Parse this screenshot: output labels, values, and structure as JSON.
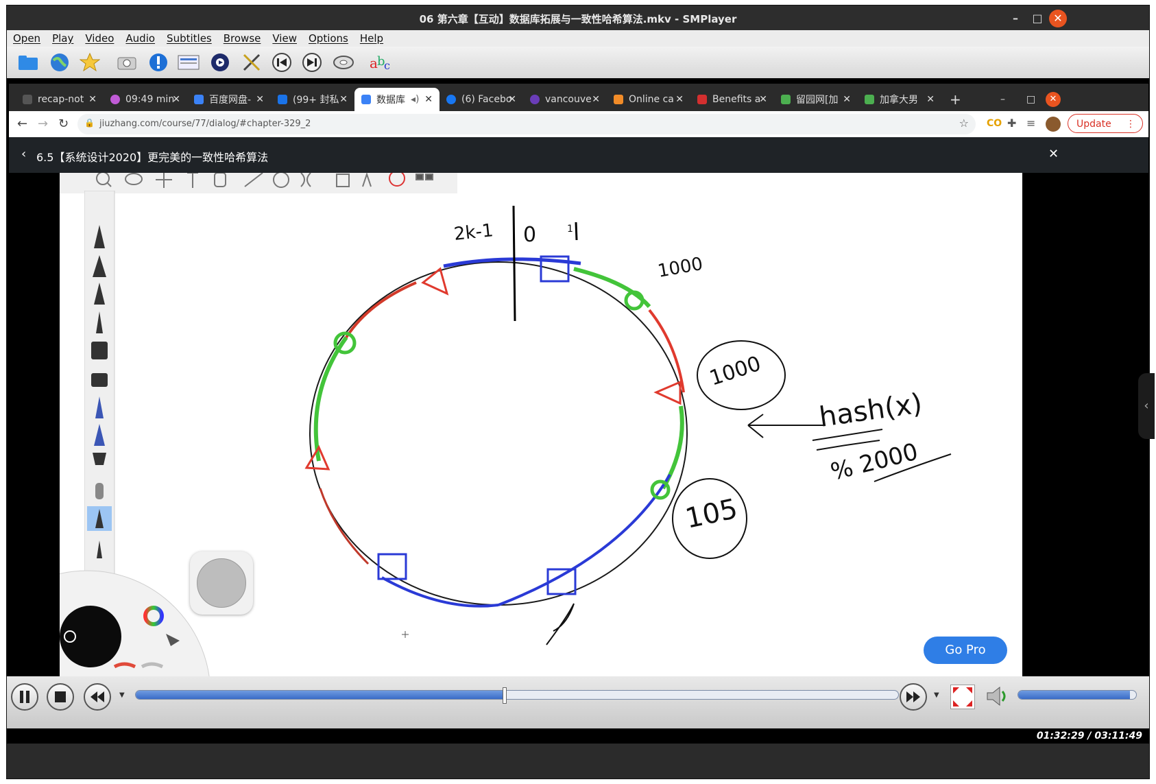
{
  "window": {
    "title": "06 第六章【互动】数据库拓展与一致性哈希算法.mkv - SMPlayer",
    "controls": [
      "–",
      "□",
      "✕"
    ]
  },
  "menu": [
    "Open",
    "Play",
    "Video",
    "Audio",
    "Subtitles",
    "Browse",
    "View",
    "Options",
    "Help"
  ],
  "toolbar_icons": [
    "folder-icon",
    "globe-icon",
    "star-icon",
    "screenshot-icon",
    "info-icon",
    "playlist-icon",
    "film-icon",
    "tools-icon",
    "prev-icon",
    "next-icon",
    "disc-icon",
    "subtitles-icon"
  ],
  "browser": {
    "tabs": [
      {
        "label": "recap-not",
        "color": "#555555"
      },
      {
        "label": "09:49 min",
        "color": "#c05bd6"
      },
      {
        "label": "百度网盘-",
        "color": "#3b82f6"
      },
      {
        "label": "(99+ 封私",
        "color": "#1a73e8"
      },
      {
        "label": "数据库",
        "color": "#3b82f6",
        "active": true
      },
      {
        "label": "(6) Facebo",
        "color": "#1877f2"
      },
      {
        "label": "vancouve",
        "color": "#6a3db8"
      },
      {
        "label": "Online ca",
        "color": "#f28c28"
      },
      {
        "label": "Benefits a",
        "color": "#d32f2f"
      },
      {
        "label": "留园网[加",
        "color": "#4caf50"
      },
      {
        "label": "加拿大男",
        "color": "#4caf50"
      }
    ],
    "new_tab": "+",
    "url": "jiuzhang.com/course/77/dialog/#chapter-329_2",
    "update_label": "Update"
  },
  "page": {
    "title": "6.5【系统设计2020】更完美的一致性哈希算法",
    "close": "✕"
  },
  "drawing": {
    "labels": [
      "0",
      "1",
      "1000",
      "1000",
      "hash(x)",
      "% 2000",
      "105",
      "2k-1"
    ],
    "go_pro": "Go Pro"
  },
  "player": {
    "progress": 0.483,
    "time": "01:32:29 / 03:11:49",
    "volume": 0.95
  },
  "colors": {
    "accent": "#e95420",
    "seek": "#3a6cc8",
    "go_pro": "#2f7ee6"
  }
}
